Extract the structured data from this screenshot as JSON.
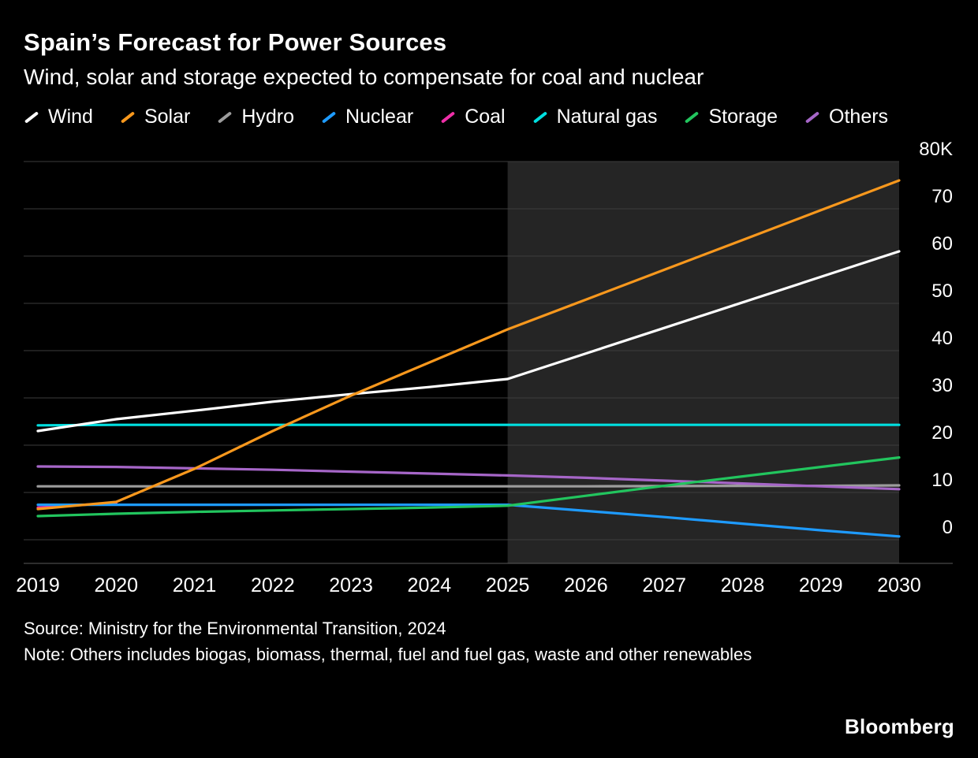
{
  "header": {
    "title": "Spain’s Forecast for Power Sources",
    "subtitle": "Wind, solar and storage expected to compensate for coal and nuclear"
  },
  "legend": {
    "items": [
      {
        "label": "Wind",
        "color": "#ffffff"
      },
      {
        "label": "Solar",
        "color": "#f8981d"
      },
      {
        "label": "Hydro",
        "color": "#9c9c9c"
      },
      {
        "label": "Nuclear",
        "color": "#1e9bff"
      },
      {
        "label": "Coal",
        "color": "#ee2fa8"
      },
      {
        "label": "Natural gas",
        "color": "#00dfe0"
      },
      {
        "label": "Storage",
        "color": "#22c55e"
      },
      {
        "label": "Others",
        "color": "#a666c8"
      }
    ]
  },
  "colors": {
    "background": "#000000",
    "text": "#ffffff",
    "gridline": "#3d3d3d",
    "axis": "#5a5a5a",
    "forecast_band": "#252525"
  },
  "chart_data": {
    "type": "line",
    "title": "Spain’s Forecast for Power Sources",
    "subtitle": "Wind, solar and storage expected to compensate for coal and nuclear",
    "unit": "MW (thousands)",
    "x": [
      2019,
      2020,
      2021,
      2022,
      2023,
      2024,
      2025,
      2026,
      2027,
      2028,
      2029,
      2030
    ],
    "ylim": [
      0,
      80
    ],
    "yticks": [
      0,
      10,
      20,
      30,
      40,
      50,
      60,
      70,
      80
    ],
    "ytick_labels": [
      "0",
      "10",
      "20",
      "30",
      "40",
      "50",
      "60",
      "70",
      "80K"
    ],
    "grid": "horizontal",
    "legend_position": "top",
    "forecast_region": {
      "start": 2025,
      "end": 2030
    },
    "series": [
      {
        "name": "Hydro",
        "color": "#9c9c9c",
        "values": [
          11.3,
          11.3,
          11.3,
          11.3,
          11.3,
          11.3,
          11.3,
          11.3,
          11.35,
          11.4,
          11.4,
          11.5
        ]
      },
      {
        "name": "Others",
        "color": "#a666c8",
        "values": [
          15.5,
          15.4,
          15.1,
          14.8,
          14.4,
          14.0,
          13.6,
          13.1,
          12.5,
          11.9,
          11.3,
          10.7
        ]
      },
      {
        "name": "Coal",
        "color": "#ee2fa8",
        "values": [
          6.8,
          7.8,
          null,
          null,
          null,
          null,
          null,
          null,
          null,
          null,
          null,
          null
        ]
      },
      {
        "name": "Nuclear",
        "color": "#1e9bff",
        "values": [
          7.4,
          7.4,
          7.4,
          7.4,
          7.4,
          7.4,
          7.4,
          6.1,
          4.8,
          3.4,
          2.0,
          0.7
        ]
      },
      {
        "name": "Storage",
        "color": "#22c55e",
        "values": [
          5.0,
          5.5,
          5.9,
          6.2,
          6.5,
          6.8,
          7.2,
          9.3,
          11.4,
          13.4,
          15.4,
          17.4
        ]
      },
      {
        "name": "Natural gas",
        "color": "#00dfe0",
        "values": [
          24.2,
          24.3,
          24.3,
          24.3,
          24.3,
          24.3,
          24.3,
          24.3,
          24.3,
          24.3,
          24.3,
          24.3
        ]
      },
      {
        "name": "Wind",
        "color": "#ffffff",
        "values": [
          23.0,
          25.5,
          27.3,
          29.2,
          30.8,
          32.3,
          34.0,
          39.4,
          44.8,
          50.2,
          55.6,
          61.0
        ]
      },
      {
        "name": "Solar",
        "color": "#f8981d",
        "values": [
          6.5,
          8.0,
          15.0,
          23.0,
          30.5,
          37.5,
          44.5,
          50.8,
          57.1,
          63.4,
          69.7,
          76.0
        ]
      }
    ]
  },
  "footer": {
    "source": "Source: Ministry for the Environmental Transition, 2024",
    "note": "Note: Others includes biogas, biomass, thermal, fuel and fuel gas, waste and other renewables",
    "brand": "Bloomberg"
  }
}
